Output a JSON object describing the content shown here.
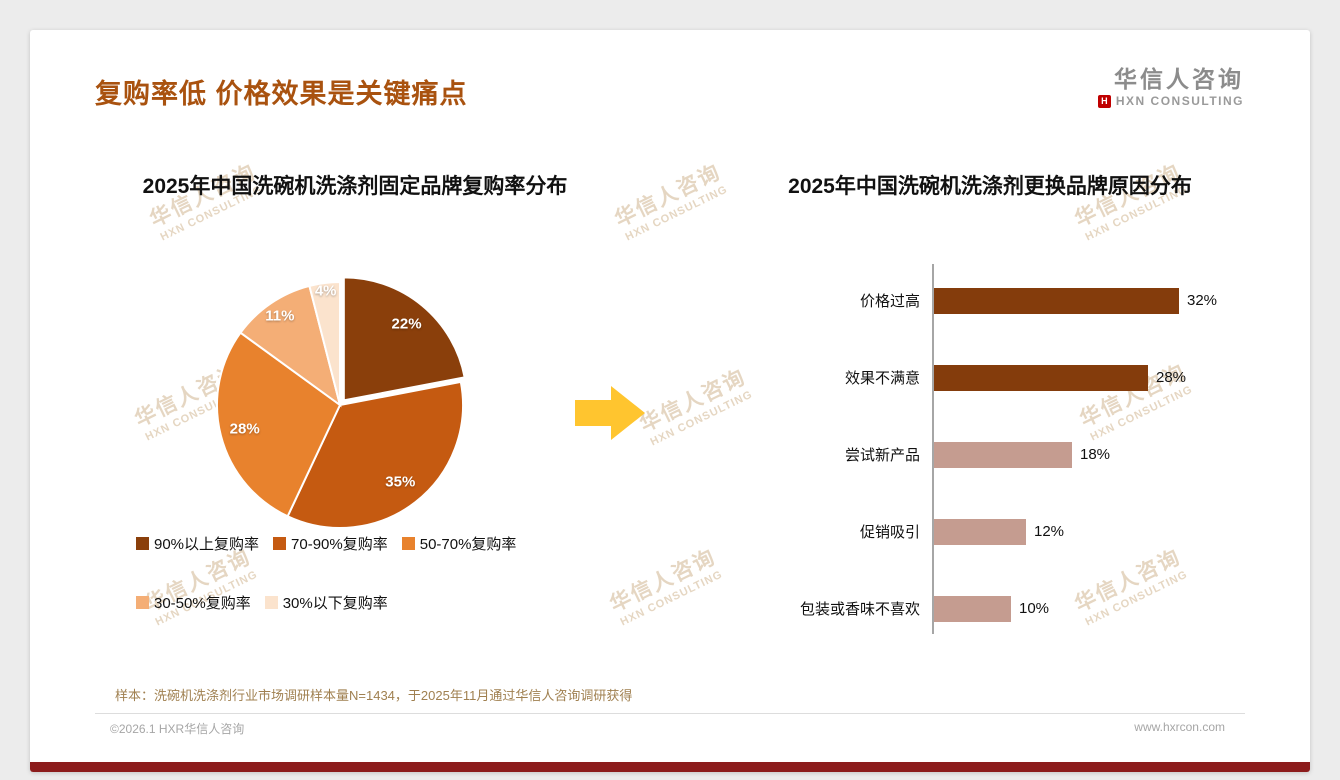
{
  "header": {
    "title": "复购率低 价格效果是关键痛点"
  },
  "logo": {
    "cn": "华信人咨询",
    "en": "HXN CONSULTING",
    "icon_letter": "H"
  },
  "watermark": {
    "line1": "华信人咨询",
    "line2": "HXN CONSULTING"
  },
  "footnote": "样本：洗碗机洗涤剂行业市场调研样本量N=1434，于2025年11月通过华信人咨询调研获得",
  "footer": {
    "left": "©2026.1 HXR华信人咨询",
    "right": "www.hxrcon.com"
  },
  "colors": {
    "accent_title": "#A9520F",
    "arrow": "#FFC52F",
    "axis": "#A6A6A6",
    "bottom_bar": "#8C1C1C",
    "dark_brown": "#843C0C",
    "rosy_brown": "#C59C90"
  },
  "chart_data": [
    {
      "type": "pie",
      "title": "2025年中国洗碗机洗涤剂固定品牌复购率分布",
      "labels": [
        "90%以上复购率",
        "70-90%复购率",
        "50-70%复购率",
        "30-50%复购率",
        "30%以下复购率"
      ],
      "values": [
        22,
        35,
        28,
        11,
        4
      ],
      "data_labels": [
        "22%",
        "35%",
        "28%",
        "11%",
        "4%"
      ],
      "colors": [
        "#8A3F0B",
        "#C55A11",
        "#E8822D",
        "#F4AE76",
        "#FBE3CD"
      ],
      "legend_position": "bottom",
      "legend_rows": [
        [
          0,
          1,
          2
        ],
        [
          3,
          4
        ]
      ]
    },
    {
      "type": "bar",
      "orientation": "horizontal",
      "title": "2025年中国洗碗机洗涤剂更换品牌原因分布",
      "categories": [
        "价格过高",
        "效果不满意",
        "尝试新产品",
        "促销吸引",
        "包装或香味不喜欢"
      ],
      "values": [
        32,
        28,
        18,
        12,
        10
      ],
      "value_labels": [
        "32%",
        "28%",
        "18%",
        "12%",
        "10%"
      ],
      "bar_colors": [
        "#843C0C",
        "#843C0C",
        "#C59C90",
        "#C59C90",
        "#C59C90"
      ],
      "xlim": [
        0,
        35
      ],
      "grid": false,
      "legend": false
    }
  ]
}
